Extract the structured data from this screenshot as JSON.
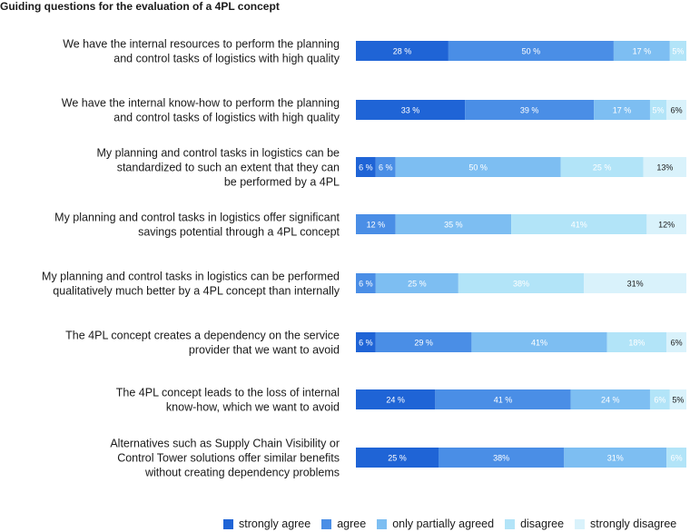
{
  "chart_data": {
    "type": "bar",
    "orientation": "horizontal",
    "stacked": true,
    "title": "Guiding questions for the evaluation of a 4PL concept",
    "categories": [
      [
        "We have the internal resources to perform the planning",
        "and control tasks of logistics with high quality"
      ],
      [
        "We have the internal know-how to perform the planning",
        "and control tasks of logistics with high quality"
      ],
      [
        "My planning and control tasks in logistics can be",
        "standardized to such an extent that they can",
        "be performed by a 4PL"
      ],
      [
        "My planning and control tasks in logistics offer significant",
        "savings potential through a 4PL concept"
      ],
      [
        "My planning and control tasks in logistics can be performed",
        "qualitatively much better by a 4PL concept than internally"
      ],
      [
        "The 4PL concept creates a dependency on the service",
        "provider that we want to avoid"
      ],
      [
        "The 4PL concept leads to the loss of internal",
        "know-how, which we want to avoid"
      ],
      [
        "Alternatives such as Supply Chain Visibility or",
        "Control Tower solutions offer similar benefits",
        "without creating dependency problems"
      ]
    ],
    "series": [
      {
        "name": "strongly agree",
        "color": "#1f64d6",
        "values": [
          28,
          33,
          6,
          0,
          0,
          6,
          24,
          25
        ]
      },
      {
        "name": "agree",
        "color": "#4a8ee6",
        "values": [
          50,
          39,
          6,
          12,
          6,
          29,
          41,
          38
        ]
      },
      {
        "name": "only partially agreed",
        "color": "#7dbef2",
        "values": [
          17,
          17,
          50,
          35,
          25,
          41,
          24,
          31
        ]
      },
      {
        "name": "disagree",
        "color": "#b2e4f8",
        "values": [
          5,
          5,
          25,
          41,
          38,
          18,
          6,
          6
        ]
      },
      {
        "name": "strongly disagree",
        "color": "#d9f2fb",
        "values": [
          0,
          6,
          13,
          12,
          31,
          6,
          5,
          0
        ]
      }
    ],
    "data_labels": [
      [
        "28 %",
        "50 %",
        "17 %",
        "5%",
        ""
      ],
      [
        "33 %",
        "39 %",
        "17 %",
        "5%",
        "6%"
      ],
      [
        "6 %",
        "6 %",
        "50 %",
        "25 %",
        "13%"
      ],
      [
        "",
        "12 %",
        "35 %",
        "41%",
        "12%"
      ],
      [
        "",
        "6 %",
        "25 %",
        "38%",
        "31%"
      ],
      [
        "6 %",
        "29 %",
        "41%",
        "18%",
        "6%"
      ],
      [
        "24 %",
        "41 %",
        "24 %",
        "6%",
        "5%"
      ],
      [
        "25 %",
        "38%",
        "31%",
        "6%",
        ""
      ]
    ],
    "label_colors": [
      "#ffffff",
      "#ffffff",
      "#ffffff",
      "#ffffff",
      "#1a1a1a"
    ],
    "xlim": [
      0,
      100
    ],
    "grid": false,
    "legend_position": "bottom"
  }
}
